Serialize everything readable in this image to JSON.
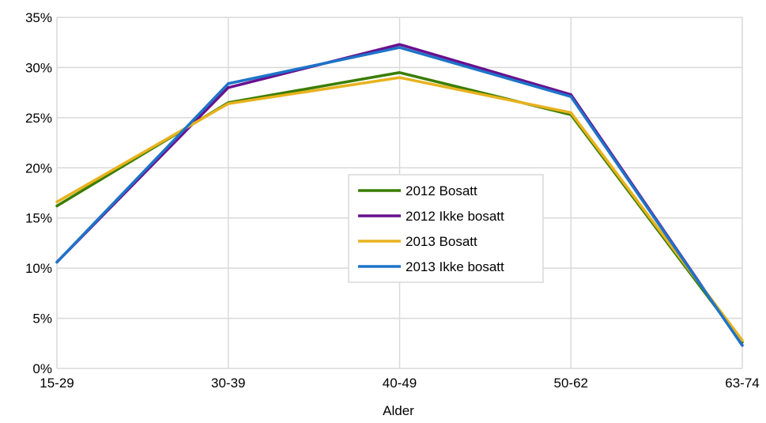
{
  "chart_data": {
    "type": "line",
    "title": "",
    "xlabel": "Alder",
    "ylabel": "",
    "categories": [
      "15-29",
      "30-39",
      "40-49",
      "50-62",
      "63-74"
    ],
    "y_ticks": [
      "0%",
      "5%",
      "10%",
      "15%",
      "20%",
      "25%",
      "30%",
      "35%"
    ],
    "ylim": [
      0,
      35
    ],
    "grid": true,
    "legend_position": "center-right",
    "series": [
      {
        "name": "2012 Bosatt",
        "color": "#3a7d00",
        "values": [
          16.2,
          26.5,
          29.5,
          25.3,
          2.6
        ]
      },
      {
        "name": "2012 Ikke bosatt",
        "color": "#6a0f8e",
        "values": [
          10.6,
          28.0,
          32.3,
          27.3,
          2.3
        ]
      },
      {
        "name": "2013 Bosatt",
        "color": "#e8b21e",
        "values": [
          16.6,
          26.4,
          29.0,
          25.5,
          2.8
        ]
      },
      {
        "name": "2013 Ikke bosatt",
        "color": "#1d74c8",
        "values": [
          10.6,
          28.4,
          32.0,
          27.1,
          2.3
        ]
      }
    ]
  }
}
